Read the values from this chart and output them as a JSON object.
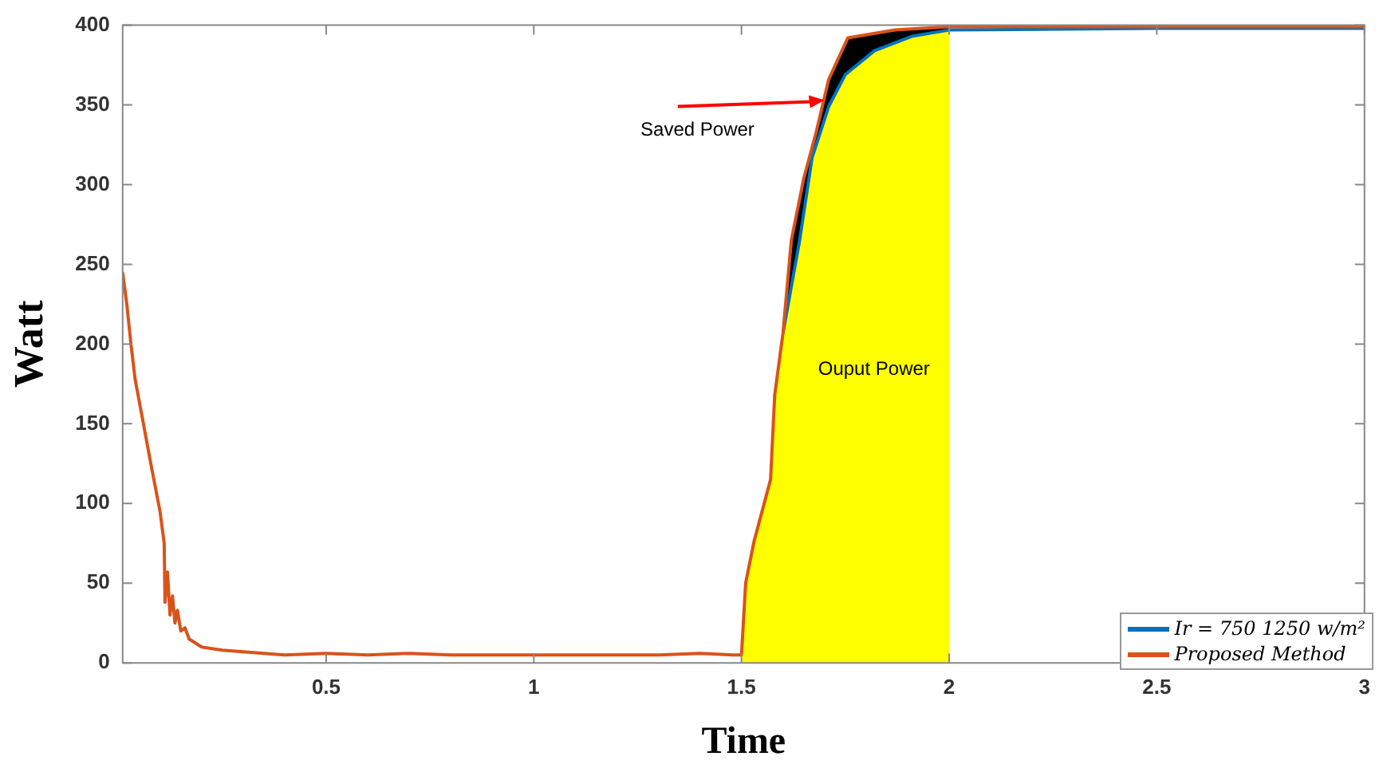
{
  "chart_data": {
    "type": "line",
    "xlabel": "Time",
    "ylabel": "Watt",
    "xlim": [
      0.01,
      3
    ],
    "ylim": [
      0,
      400
    ],
    "xticks": [
      0.5,
      1,
      1.5,
      2,
      2.5,
      3
    ],
    "yticks": [
      0,
      50,
      100,
      150,
      200,
      250,
      300,
      350,
      400
    ],
    "grid": false,
    "legend": "bottom right",
    "marker": "none",
    "line_style": "solid",
    "series": [
      {
        "type": "area",
        "color": "#000000",
        "x": [
          1.5,
          1.51,
          1.53,
          1.57,
          1.58,
          1.6,
          1.62,
          1.65,
          1.68,
          1.71,
          1.756,
          1.87,
          2.0
        ],
        "values": [
          5,
          50,
          76,
          115,
          168,
          207,
          265,
          304,
          333,
          366,
          392,
          397,
          399
        ]
      },
      {
        "type": "area",
        "color": "#ffff00",
        "x": [
          1.5,
          1.51,
          1.53,
          1.57,
          1.58,
          1.6,
          1.64,
          1.67,
          1.71,
          1.75,
          1.82,
          1.91,
          2.0
        ],
        "values": [
          5,
          50,
          76,
          115,
          168,
          207,
          265,
          317,
          349,
          369,
          384,
          393,
          397
        ]
      },
      {
        "name": "Ir = 750 1250 w/m²",
        "color": "#0072bd",
        "x": [
          1.6,
          1.64,
          1.67,
          1.71,
          1.75,
          1.82,
          1.91,
          2.0,
          2.5,
          3.0
        ],
        "values": [
          207,
          265,
          317,
          349,
          369,
          384,
          393,
          397,
          398,
          398
        ]
      },
      {
        "name": "Proposed Method",
        "color": "#d95319",
        "x": [
          0.01,
          0.02,
          0.03,
          0.04,
          0.06,
          0.08,
          0.1,
          0.11,
          0.112,
          0.118,
          0.124,
          0.13,
          0.136,
          0.142,
          0.15,
          0.16,
          0.17,
          0.2,
          0.25,
          0.3,
          0.4,
          0.5,
          0.6,
          0.7,
          0.8,
          0.9,
          1.0,
          1.1,
          1.2,
          1.3,
          1.4,
          1.48,
          1.5,
          1.51,
          1.53,
          1.57,
          1.58,
          1.6,
          1.62,
          1.65,
          1.68,
          1.71,
          1.756,
          1.87,
          2.0,
          2.5,
          3.0
        ],
        "values": [
          245,
          225,
          200,
          178,
          150,
          122,
          95,
          75,
          38,
          57,
          30,
          42,
          25,
          33,
          20,
          22,
          15,
          10,
          8,
          7,
          5,
          6,
          5,
          6,
          5,
          5,
          5,
          5,
          5,
          5,
          6,
          5,
          5,
          50,
          76,
          115,
          168,
          207,
          265,
          304,
          333,
          366,
          392,
          397,
          399,
          399,
          399
        ]
      }
    ],
    "annotations": [
      {
        "text": "Saved Power",
        "x": 1.7,
        "y": 353
      },
      "Ouput Power"
    ]
  }
}
